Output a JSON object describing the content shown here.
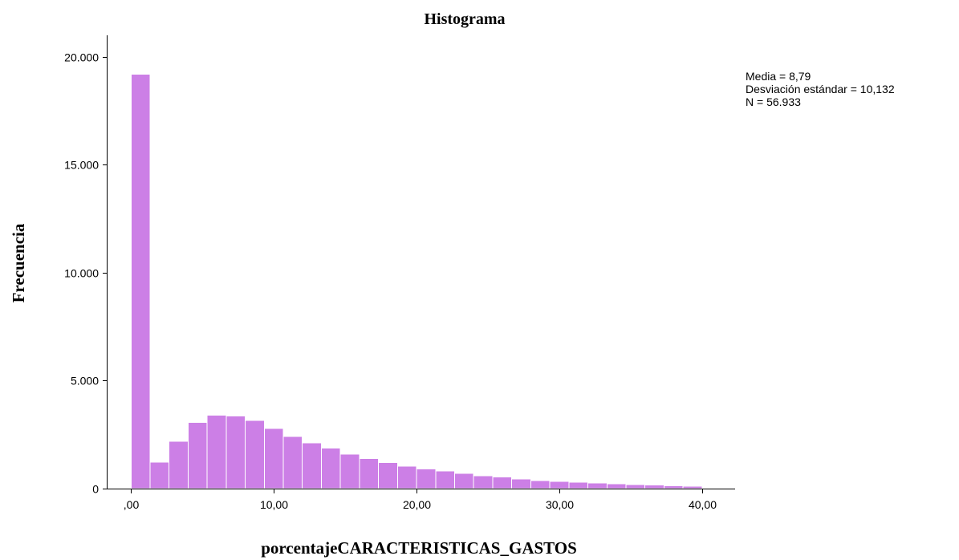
{
  "chart_data": {
    "type": "bar",
    "title": "Histograma",
    "xlabel": "porcentajeCARACTERISTICAS_GASTOS",
    "ylabel": "Frecuencia",
    "bar_color": "#cc7fe6",
    "grid": false,
    "xlim": [
      -1.7,
      42.3
    ],
    "ylim": [
      0,
      21000
    ],
    "bin_width": 1.333,
    "bin_start": 0,
    "values": [
      19200,
      1230,
      2190,
      3060,
      3410,
      3370,
      3160,
      2790,
      2410,
      2110,
      1880,
      1600,
      1400,
      1210,
      1040,
      920,
      810,
      700,
      600,
      540,
      440,
      380,
      330,
      290,
      260,
      230,
      190,
      160,
      130,
      110
    ],
    "x_ticks": [
      {
        "value": 0,
        "label": ",00"
      },
      {
        "value": 10,
        "label": "10,00"
      },
      {
        "value": 20,
        "label": "20,00"
      },
      {
        "value": 30,
        "label": "30,00"
      },
      {
        "value": 40,
        "label": "40,00"
      }
    ],
    "y_ticks": [
      {
        "value": 0,
        "label": "0"
      },
      {
        "value": 5000,
        "label": "5.000"
      },
      {
        "value": 10000,
        "label": "10.000"
      },
      {
        "value": 15000,
        "label": "15.000"
      },
      {
        "value": 20000,
        "label": "20.000"
      }
    ],
    "stats": {
      "mean": "Media = 8,79",
      "std": "Desviación estándar = 10,132",
      "n": "N = 56.933"
    },
    "legend_position": "top-right"
  }
}
